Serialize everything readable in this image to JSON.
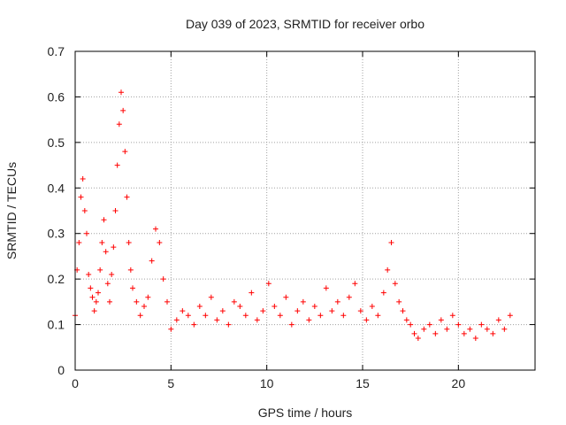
{
  "chart_data": {
    "type": "scatter",
    "title": "Day 039 of 2023, SRMTID for receiver orbo",
    "xlabel": "GPS time / hours",
    "ylabel": "SRMTID / TECUs",
    "xlim": [
      0,
      24
    ],
    "ylim": [
      0,
      0.7
    ],
    "xticks": [
      0,
      5,
      10,
      15,
      20
    ],
    "yticks": [
      0,
      0.1,
      0.2,
      0.3,
      0.4,
      0.5,
      0.6,
      0.7
    ],
    "xtick_labels": [
      "0",
      "5",
      "10",
      "15",
      "20"
    ],
    "ytick_labels": [
      "0",
      "0.1",
      "0.2",
      "0.3",
      "0.4",
      "0.5",
      "0.6",
      "0.7"
    ],
    "grid": true,
    "marker": "+",
    "color": "#ff0000",
    "series": [
      {
        "name": "SRMTID",
        "x": [
          0.0,
          0.1,
          0.2,
          0.3,
          0.4,
          0.5,
          0.6,
          0.7,
          0.8,
          0.9,
          1.0,
          1.1,
          1.2,
          1.3,
          1.4,
          1.5,
          1.6,
          1.7,
          1.8,
          1.9,
          2.0,
          2.1,
          2.2,
          2.3,
          2.4,
          2.5,
          2.6,
          2.7,
          2.8,
          2.9,
          3.0,
          3.2,
          3.4,
          3.6,
          3.8,
          4.0,
          4.2,
          4.4,
          4.6,
          4.8,
          5.0,
          5.3,
          5.6,
          5.9,
          6.2,
          6.5,
          6.8,
          7.1,
          7.4,
          7.7,
          8.0,
          8.3,
          8.6,
          8.9,
          9.2,
          9.5,
          9.8,
          10.1,
          10.4,
          10.7,
          11.0,
          11.3,
          11.6,
          11.9,
          12.2,
          12.5,
          12.8,
          13.1,
          13.4,
          13.7,
          14.0,
          14.3,
          14.6,
          14.9,
          15.2,
          15.5,
          15.8,
          16.1,
          16.3,
          16.5,
          16.7,
          16.9,
          17.1,
          17.3,
          17.5,
          17.7,
          17.9,
          18.2,
          18.5,
          18.8,
          19.1,
          19.4,
          19.7,
          20.0,
          20.3,
          20.6,
          20.9,
          21.2,
          21.5,
          21.8,
          22.1,
          22.4,
          22.7
        ],
        "y": [
          0.12,
          0.22,
          0.28,
          0.38,
          0.42,
          0.35,
          0.3,
          0.21,
          0.18,
          0.16,
          0.13,
          0.15,
          0.17,
          0.22,
          0.28,
          0.33,
          0.26,
          0.19,
          0.15,
          0.21,
          0.27,
          0.35,
          0.45,
          0.54,
          0.61,
          0.57,
          0.48,
          0.38,
          0.28,
          0.22,
          0.18,
          0.15,
          0.12,
          0.14,
          0.16,
          0.24,
          0.31,
          0.28,
          0.2,
          0.15,
          0.09,
          0.11,
          0.13,
          0.12,
          0.1,
          0.14,
          0.12,
          0.16,
          0.11,
          0.13,
          0.1,
          0.15,
          0.14,
          0.12,
          0.17,
          0.11,
          0.13,
          0.19,
          0.14,
          0.12,
          0.16,
          0.1,
          0.13,
          0.15,
          0.11,
          0.14,
          0.12,
          0.18,
          0.13,
          0.15,
          0.12,
          0.16,
          0.19,
          0.13,
          0.11,
          0.14,
          0.12,
          0.17,
          0.22,
          0.28,
          0.19,
          0.15,
          0.13,
          0.11,
          0.1,
          0.08,
          0.07,
          0.09,
          0.1,
          0.08,
          0.11,
          0.09,
          0.12,
          0.1,
          0.08,
          0.09,
          0.07,
          0.1,
          0.09,
          0.08,
          0.11,
          0.09,
          0.12
        ]
      }
    ]
  }
}
